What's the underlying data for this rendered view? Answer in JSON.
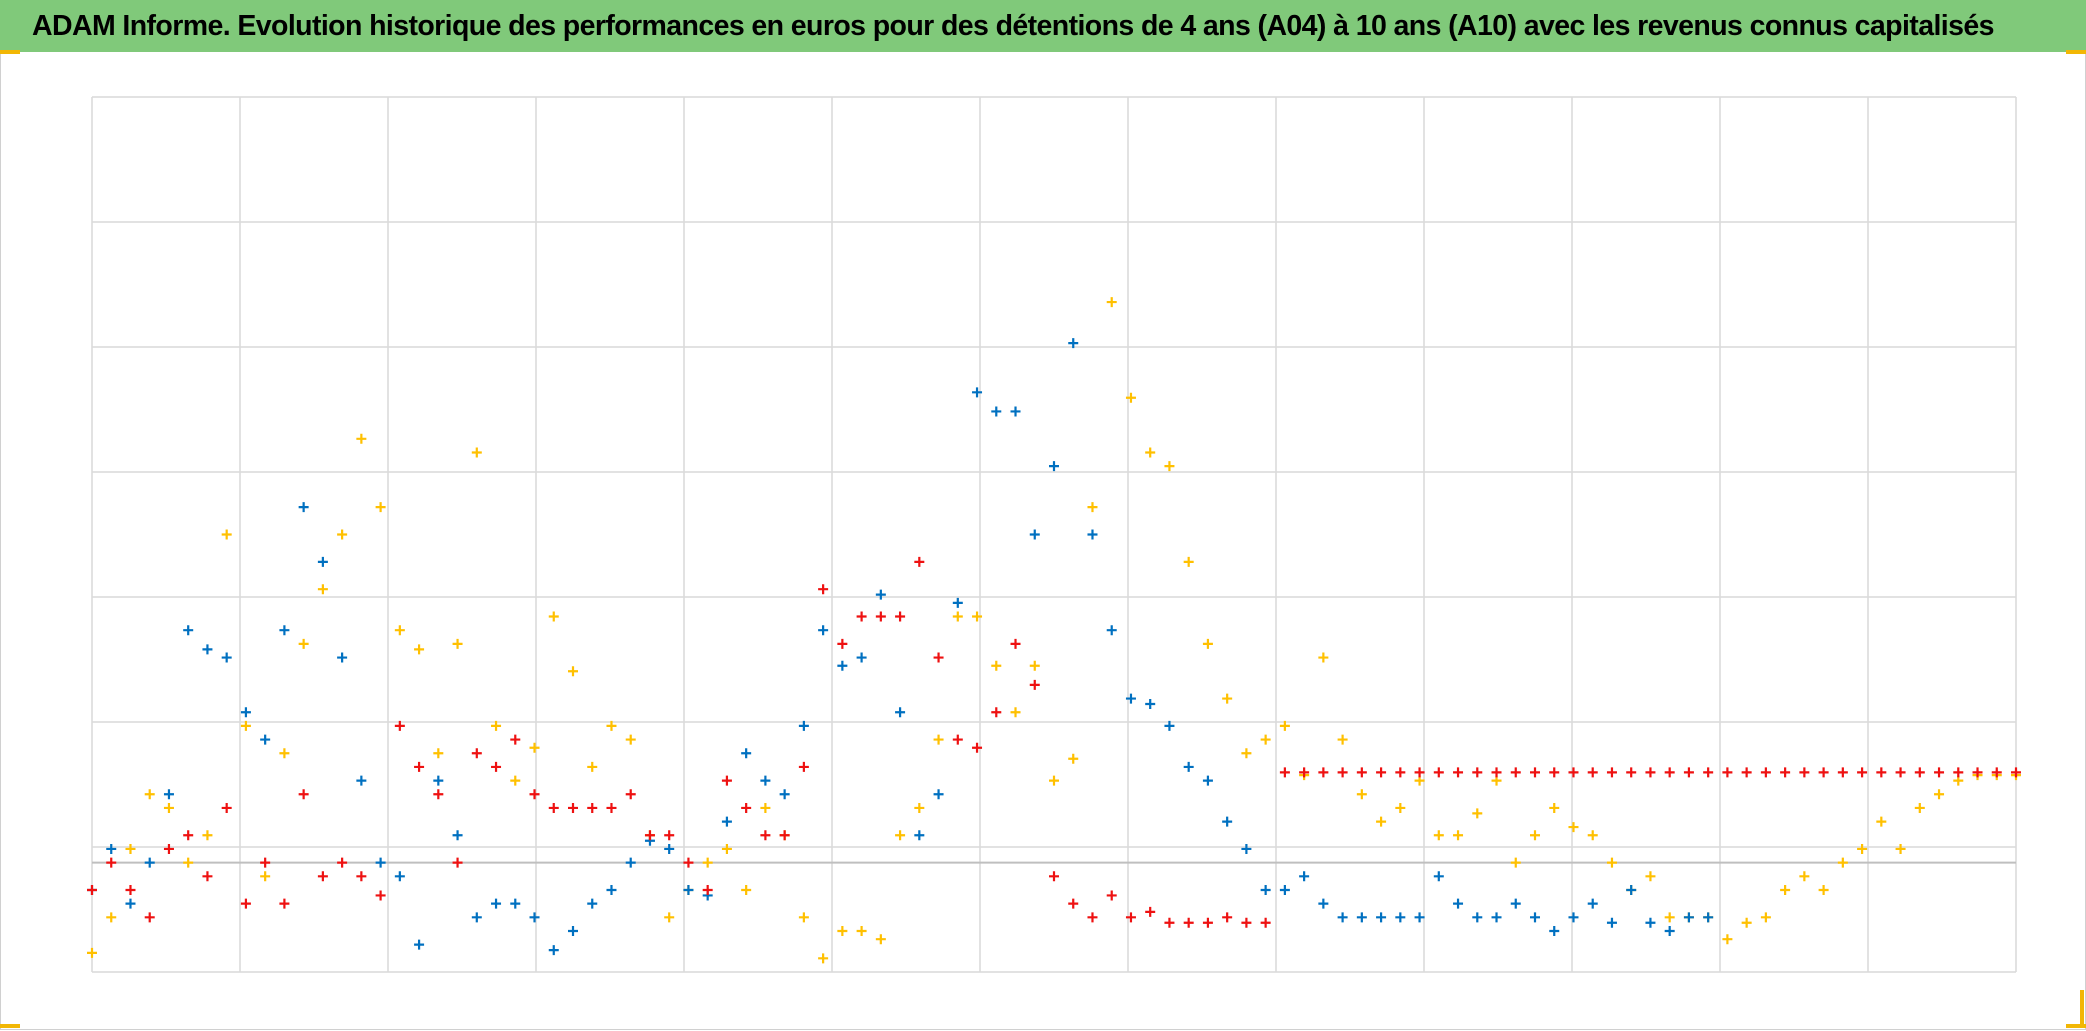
{
  "header": {
    "title": "ADAM Informe. Evolution historique des performances en euros pour des détentions de 4 ans (A04) à 10 ans (A10) avec les revenus connus capitalisés"
  },
  "colors": {
    "title_bg": "#80c97a",
    "grid": "#d9d9d9",
    "zero_line": "#bfbfbf",
    "accent_corner": "#f2b705"
  },
  "chart_data": {
    "type": "scatter",
    "title": "ADAM Informe. Evolution historique des performances en euros pour des détentions de 4 ans (A04) à 10 ans (A10) avec les revenus connus capitalisés",
    "xlabel": "",
    "ylabel": "",
    "x_range": [
      0,
      100
    ],
    "ylim": [
      -0.4,
      2.8
    ],
    "grid": true,
    "legend": "none",
    "marker": "plus",
    "series": [
      {
        "color": "#ffc000",
        "x": [
          0,
          1,
          2,
          3,
          4,
          5,
          6,
          7,
          8,
          9,
          10,
          11,
          12,
          13,
          14,
          15,
          16,
          17,
          18,
          19,
          20,
          21,
          22,
          23,
          24,
          25,
          26,
          27,
          28,
          29,
          30,
          31,
          32,
          33,
          34,
          35,
          36,
          37,
          38,
          39,
          40,
          41,
          42,
          43,
          44,
          45,
          46,
          47,
          48,
          49,
          50,
          51,
          52,
          53,
          54,
          55,
          56,
          57,
          58,
          59,
          60,
          61,
          62,
          63,
          64,
          65,
          66,
          67,
          68,
          69,
          70,
          71,
          72,
          73,
          74,
          75,
          76,
          77,
          78,
          79,
          80,
          81,
          82,
          83,
          84,
          85,
          86,
          87,
          88,
          89,
          90,
          91,
          92,
          93,
          94,
          95,
          96,
          97,
          98,
          99,
          100
        ],
        "y": [
          -0.33,
          -0.2,
          0.05,
          0.25,
          0.2,
          0.0,
          0.1,
          1.2,
          0.5,
          -0.05,
          0.4,
          0.8,
          1.0,
          1.2,
          1.55,
          1.3,
          0.85,
          0.78,
          0.4,
          0.8,
          1.5,
          0.5,
          0.3,
          0.42,
          0.9,
          0.7,
          0.35,
          0.5,
          0.45,
          0.1,
          -0.2,
          -0.1,
          0.0,
          0.05,
          -0.1,
          0.2,
          0.1,
          -0.2,
          -0.35,
          -0.25,
          -0.25,
          -0.28,
          0.1,
          0.2,
          0.45,
          0.9,
          0.9,
          0.72,
          0.55,
          0.72,
          0.3,
          0.38,
          1.3,
          2.05,
          1.7,
          1.5,
          1.45,
          1.1,
          0.8,
          0.6,
          0.4,
          0.45,
          0.5,
          0.32,
          0.75,
          0.45,
          0.25,
          0.15,
          0.2,
          0.3,
          0.1,
          0.1,
          0.18,
          0.3,
          0.0,
          0.1,
          0.2,
          0.13,
          0.1,
          0.0,
          -0.1,
          -0.05,
          -0.2,
          -0.2,
          -0.2,
          -0.28,
          -0.22,
          -0.2,
          -0.1,
          -0.05,
          -0.1,
          0.0,
          0.05,
          0.15,
          0.05,
          0.2,
          0.25,
          0.3,
          0.32,
          0.32,
          0.32
        ]
      },
      {
        "color": "#0070c0",
        "x": [
          0,
          1,
          2,
          3,
          4,
          5,
          6,
          7,
          8,
          9,
          10,
          11,
          12,
          13,
          14,
          15,
          16,
          17,
          18,
          19,
          20,
          21,
          22,
          23,
          24,
          25,
          26,
          27,
          28,
          29,
          30,
          31,
          32,
          33,
          34,
          35,
          36,
          37,
          38,
          39,
          40,
          41,
          42,
          43,
          44,
          45,
          46,
          47,
          48,
          49,
          50,
          51,
          52,
          53,
          54,
          55,
          56,
          57,
          58,
          59,
          60,
          61,
          62,
          63,
          64,
          65,
          66,
          67,
          68,
          69,
          70,
          71,
          72,
          73,
          74,
          75,
          76,
          77,
          78,
          79,
          80,
          81,
          82,
          83,
          84
        ],
        "y": [
          -0.1,
          0.05,
          -0.15,
          0.0,
          0.25,
          0.85,
          0.78,
          0.75,
          0.55,
          0.45,
          0.85,
          1.3,
          1.1,
          0.75,
          0.3,
          0.0,
          -0.05,
          -0.3,
          0.3,
          0.1,
          -0.2,
          -0.15,
          -0.15,
          -0.2,
          -0.32,
          -0.25,
          -0.15,
          -0.1,
          0.0,
          0.08,
          0.05,
          -0.1,
          -0.12,
          0.15,
          0.4,
          0.3,
          0.25,
          0.5,
          0.85,
          0.72,
          0.75,
          0.98,
          0.55,
          0.1,
          0.25,
          0.95,
          1.72,
          1.65,
          1.65,
          1.2,
          1.45,
          1.9,
          1.2,
          0.85,
          0.6,
          0.58,
          0.5,
          0.35,
          0.3,
          0.15,
          0.05,
          -0.1,
          -0.1,
          -0.05,
          -0.15,
          -0.2,
          -0.2,
          -0.2,
          -0.2,
          -0.2,
          -0.05,
          -0.15,
          -0.2,
          -0.2,
          -0.15,
          -0.2,
          -0.25,
          -0.2,
          -0.15,
          -0.22,
          -0.1,
          -0.22,
          -0.25,
          -0.2,
          -0.2
        ]
      },
      {
        "color": "#ee1111",
        "x": [
          0,
          1,
          2,
          3,
          4,
          5,
          6,
          7,
          8,
          9,
          10,
          11,
          12,
          13,
          14,
          15,
          16,
          17,
          18,
          19,
          20,
          21,
          22,
          23,
          24,
          25,
          26,
          27,
          28,
          29,
          30,
          31,
          32,
          33,
          34,
          35,
          36,
          37,
          38,
          39,
          40,
          41,
          42,
          43,
          44,
          45,
          46,
          47,
          48,
          49,
          50,
          51,
          52,
          53,
          54,
          55,
          56,
          57,
          58,
          59,
          60,
          61,
          62,
          63,
          64,
          65,
          66,
          67,
          68,
          69,
          70,
          71,
          72,
          73,
          74,
          75,
          76,
          77,
          78,
          79,
          80,
          81,
          82,
          83,
          84,
          85,
          86,
          87,
          88,
          89,
          90,
          91,
          92,
          93,
          94,
          95,
          96,
          97,
          98,
          99,
          100
        ],
        "y": [
          -0.1,
          0.0,
          -0.1,
          -0.2,
          0.05,
          0.1,
          -0.05,
          0.2,
          -0.15,
          0.0,
          -0.15,
          0.25,
          -0.05,
          0.0,
          -0.05,
          -0.12,
          0.5,
          0.35,
          0.25,
          0.0,
          0.4,
          0.35,
          0.45,
          0.25,
          0.2,
          0.2,
          0.2,
          0.2,
          0.25,
          0.1,
          0.1,
          0.0,
          -0.1,
          0.3,
          0.2,
          0.1,
          0.1,
          0.35,
          1.0,
          0.8,
          0.9,
          0.9,
          0.9,
          1.1,
          0.75,
          0.45,
          0.42,
          0.55,
          0.8,
          0.65,
          -0.05,
          -0.15,
          -0.2,
          -0.12,
          -0.2,
          -0.18,
          -0.22,
          -0.22,
          -0.22,
          -0.2,
          -0.22,
          -0.22,
          0.33,
          0.33,
          0.33,
          0.33,
          0.33,
          0.33,
          0.33,
          0.33,
          0.33,
          0.33,
          0.33,
          0.33,
          0.33,
          0.33,
          0.33,
          0.33,
          0.33,
          0.33,
          0.33,
          0.33,
          0.33,
          0.33,
          0.33,
          0.33,
          0.33,
          0.33,
          0.33,
          0.33,
          0.33,
          0.33,
          0.33,
          0.33,
          0.33,
          0.33,
          0.33,
          0.33,
          0.33,
          0.33,
          0.33
        ]
      }
    ]
  }
}
